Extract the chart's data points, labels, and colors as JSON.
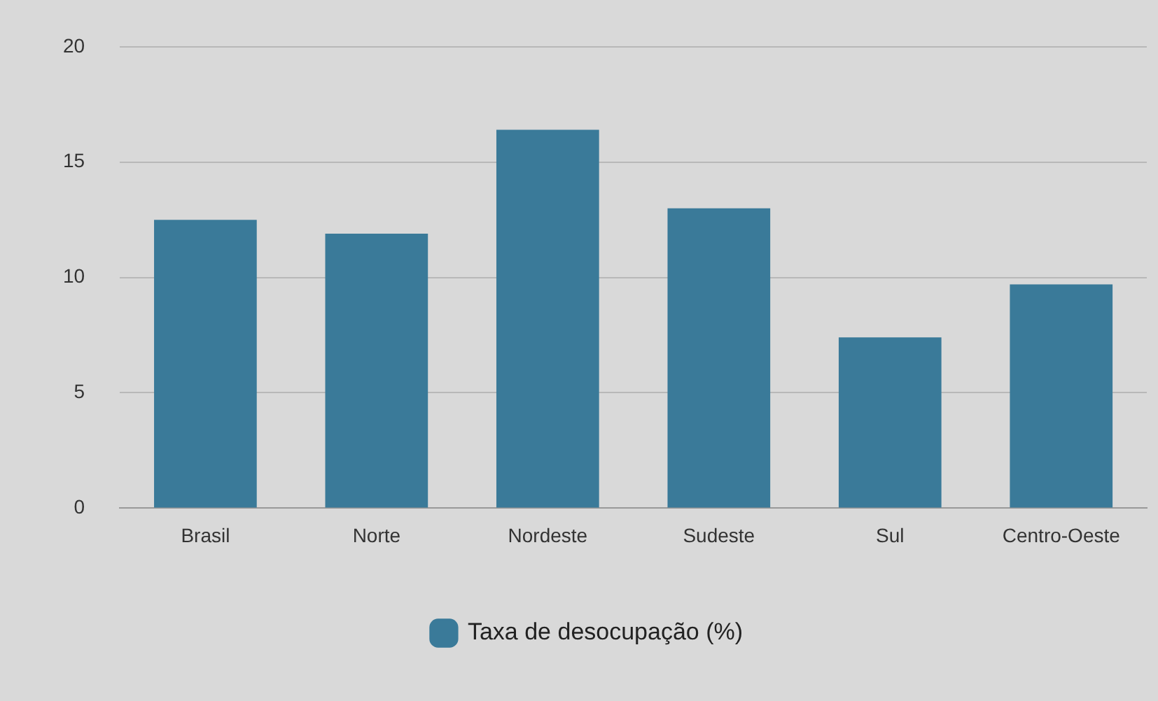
{
  "chart_data": {
    "type": "bar",
    "categories": [
      "Brasil",
      "Norte",
      "Nordeste",
      "Sudeste",
      "Sul",
      "Centro-Oeste"
    ],
    "series": [
      {
        "name": "Taxa de desocupação (%)",
        "color": "#3a7a99",
        "values": [
          12.5,
          11.9,
          16.4,
          13.0,
          7.4,
          9.7
        ]
      }
    ],
    "ylim": [
      0,
      20
    ],
    "yticks": [
      0,
      5,
      10,
      15,
      20
    ],
    "grid": "y",
    "legend": "bottom"
  }
}
